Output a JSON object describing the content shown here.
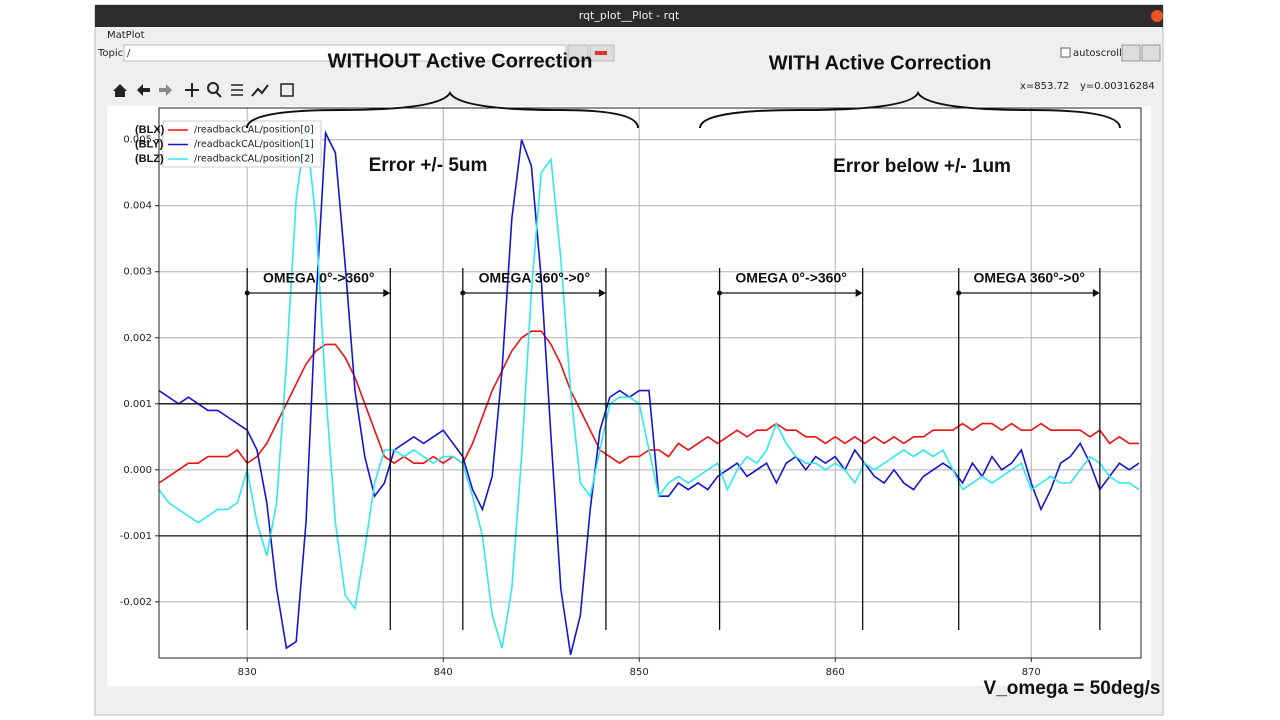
{
  "window": {
    "title": "rqt_plot__Plot - rqt",
    "panel": "MatPlot",
    "topic_label": "Topic",
    "topic_value": "/",
    "autoscroll": "autoscroll",
    "cursor_x": "x=853.72",
    "cursor_y": "y=0.00316284"
  },
  "annotations": {
    "left_heading": "WITHOUT Active Correction",
    "right_heading": "WITH Active Correction",
    "left_error": "Error +/- 5um",
    "right_error": "Error below +/- 1um",
    "ranges": [
      "OMEGA 0°->360°",
      "OMEGA 360°->0°",
      "OMEGA 0°->360°",
      "OMEGA 360°->0°"
    ],
    "speed": "V_omega = 50deg/s",
    "legend_prefixes": [
      "(BLX)",
      "(BLY)",
      "(BLZ)"
    ]
  },
  "chart_data": {
    "type": "line",
    "x": [
      825.5,
      826,
      826.5,
      827,
      827.5,
      828,
      828.5,
      829,
      829.5,
      830,
      830.5,
      831,
      831.5,
      832,
      832.5,
      833,
      833.5,
      834,
      834.5,
      835,
      835.5,
      836,
      836.5,
      837,
      837.5,
      838,
      838.5,
      839,
      839.5,
      840,
      840.5,
      841,
      841.5,
      842,
      842.5,
      843,
      843.5,
      844,
      844.5,
      845,
      845.5,
      846,
      846.5,
      847,
      847.5,
      848,
      848.5,
      849,
      849.5,
      850,
      850.5,
      851,
      851.5,
      852,
      852.5,
      853,
      853.5,
      854,
      854.5,
      855,
      855.5,
      856,
      856.5,
      857,
      857.5,
      858,
      858.5,
      859,
      859.5,
      860,
      860.5,
      861,
      861.5,
      862,
      862.5,
      863,
      863.5,
      864,
      864.5,
      865,
      865.5,
      866,
      866.5,
      867,
      867.5,
      868,
      868.5,
      869,
      869.5,
      870,
      870.5,
      871,
      871.5,
      872,
      872.5,
      873,
      873.5,
      874,
      874.5,
      875,
      875.5
    ],
    "series": [
      {
        "name": "/readbackCAL/position[0]",
        "color": "#ee1111",
        "values": [
          -0.0002,
          -0.0001,
          0,
          0.0001,
          0.0001,
          0.0002,
          0.0002,
          0.0002,
          0.0003,
          0.0001,
          0.0002,
          0.0004,
          0.0007,
          0.001,
          0.0013,
          0.0016,
          0.0018,
          0.0019,
          0.0019,
          0.0017,
          0.0014,
          0.001,
          0.0006,
          0.0002,
          0.0001,
          0.0002,
          0.0001,
          0.0001,
          0.0002,
          0.0001,
          0.0002,
          0.0001,
          0.0004,
          0.0008,
          0.0012,
          0.0015,
          0.0018,
          0.002,
          0.0021,
          0.0021,
          0.0019,
          0.0016,
          0.0012,
          0.0009,
          0.0006,
          0.0003,
          0.0002,
          0.0001,
          0.0002,
          0.0002,
          0.0003,
          0.0003,
          0.0002,
          0.0004,
          0.0003,
          0.0004,
          0.0005,
          0.0004,
          0.0005,
          0.0006,
          0.0005,
          0.0006,
          0.0006,
          0.0007,
          0.0006,
          0.0006,
          0.0005,
          0.0005,
          0.0004,
          0.0005,
          0.0004,
          0.0005,
          0.0004,
          0.0005,
          0.0004,
          0.0005,
          0.0004,
          0.0005,
          0.0005,
          0.0006,
          0.0006,
          0.0006,
          0.0007,
          0.0006,
          0.0007,
          0.0007,
          0.0006,
          0.0007,
          0.0006,
          0.0006,
          0.0007,
          0.0006,
          0.0006,
          0.0006,
          0.0006,
          0.0005,
          0.0006,
          0.0004,
          0.0005,
          0.0004,
          0.0004
        ]
      },
      {
        "name": "/readbackCAL/position[1]",
        "color": "#1515d0",
        "values": [
          0.0012,
          0.0011,
          0.001,
          0.0011,
          0.001,
          0.0009,
          0.0009,
          0.0008,
          0.0007,
          0.0006,
          0.0003,
          -0.0005,
          -0.0018,
          -0.0027,
          -0.0026,
          -0.0008,
          0.0025,
          0.0051,
          0.0048,
          0.0031,
          0.0012,
          0.0002,
          -0.0004,
          -0.0002,
          0.0003,
          0.0004,
          0.0005,
          0.0004,
          0.0005,
          0.0006,
          0.0004,
          0.0002,
          -0.0003,
          -0.0006,
          -0.0001,
          0.0015,
          0.0038,
          0.005,
          0.0046,
          0.0029,
          0.0005,
          -0.0018,
          -0.0028,
          -0.0022,
          -0.0006,
          0.0006,
          0.0011,
          0.0012,
          0.0011,
          0.0012,
          0.0012,
          -0.0004,
          -0.0004,
          -0.0002,
          -0.0003,
          -0.0002,
          -0.0003,
          -0.0001,
          0,
          0.0001,
          -0.0001,
          0,
          0.0001,
          -0.0002,
          0.0001,
          0.0002,
          0,
          0.0002,
          0.0001,
          0.0002,
          0,
          0.0003,
          0.0001,
          -0.0001,
          -0.0002,
          0,
          -0.0002,
          -0.0003,
          -0.0001,
          0,
          0.0001,
          0,
          -0.0002,
          0.0001,
          -0.0001,
          0.0002,
          0,
          0.0001,
          0.0003,
          -0.0002,
          -0.0006,
          -0.0003,
          0.0001,
          0.0002,
          0.0004,
          0.0001,
          -0.0003,
          -0.0001,
          0.0001,
          0,
          0.0001
        ]
      },
      {
        "name": "/readbackCAL/position[2]",
        "color": "#30e8ee",
        "values": [
          -0.0003,
          -0.0005,
          -0.0006,
          -0.0007,
          -0.0008,
          -0.0007,
          -0.0006,
          -0.0006,
          -0.0005,
          0,
          -0.0008,
          -0.0013,
          -0.0005,
          0.0016,
          0.0041,
          0.0052,
          0.0038,
          0.0012,
          -0.0008,
          -0.0019,
          -0.0021,
          -0.0012,
          -0.0002,
          0.0003,
          0.0003,
          0.0002,
          0.0003,
          0.0002,
          0.0001,
          0.0002,
          0.0002,
          0.0001,
          -0.0004,
          -0.001,
          -0.0022,
          -0.0027,
          -0.0018,
          0.0002,
          0.0027,
          0.0045,
          0.0047,
          0.0032,
          0.0012,
          -0.0002,
          -0.0004,
          0.0003,
          0.001,
          0.0011,
          0.0011,
          0.001,
          0.0003,
          -0.0004,
          -0.0002,
          -0.0001,
          -0.0002,
          -0.0001,
          0,
          0.0001,
          -0.0003,
          0,
          0.0002,
          0.0001,
          0.0003,
          0.0007,
          0.0004,
          0.0002,
          0.0001,
          0.0001,
          0,
          0.0001,
          0,
          -0.0002,
          0.0001,
          0,
          0.0001,
          0.0002,
          0.0003,
          0.0002,
          0.0003,
          0.0002,
          0.0003,
          0,
          -0.0003,
          -0.0002,
          -0.0001,
          -0.0002,
          -0.0001,
          0,
          0.0001,
          -0.0003,
          -0.0002,
          -0.0001,
          -0.0002,
          -0.0002,
          0,
          0.0002,
          0.0001,
          -0.0001,
          -0.0002,
          -0.0002,
          -0.0003
        ]
      }
    ],
    "xlim": [
      825.5,
      875.6
    ],
    "ylim": [
      -0.00285,
      0.00548
    ],
    "xticks": [
      830,
      840,
      850,
      860,
      870
    ],
    "yticks": [
      -0.002,
      -0.001,
      {
        "value": 0,
        "label": "0.000"
      },
      0.001,
      0.002,
      0.003,
      0.004,
      0.005
    ],
    "grid": true,
    "hlines": [
      0.001,
      -0.001
    ],
    "vlines": [
      830,
      837.3,
      841,
      848.3,
      854.1,
      861.4,
      866.3,
      873.5
    ],
    "legend": "upper left"
  }
}
